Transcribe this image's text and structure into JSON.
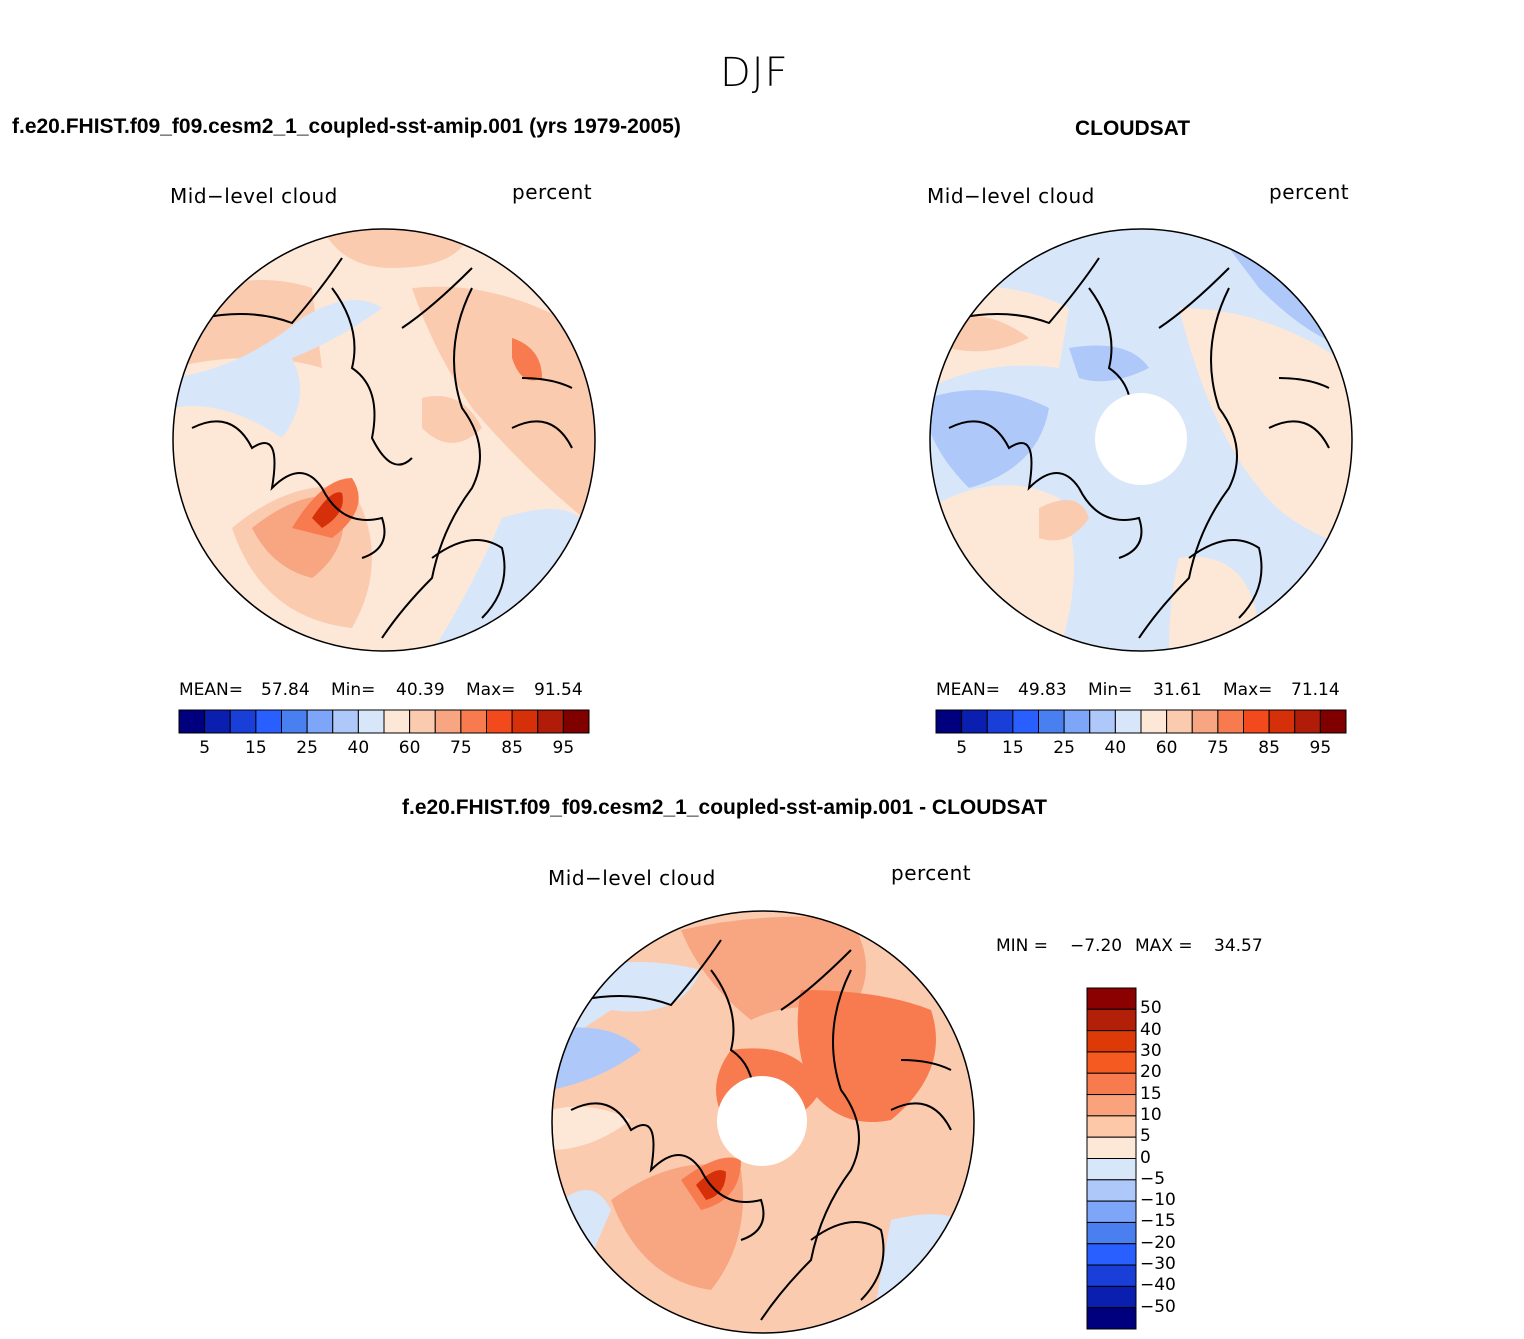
{
  "suptitle": "DJF",
  "panels": [
    {
      "title": "f.e20.FHIST.f09_f09.cesm2_1_coupled-sst-amip.001 (yrs 1979-2005)",
      "left_label": "Mid−level cloud",
      "right_label": "percent",
      "mean_label": "MEAN=",
      "mean": "57.84",
      "min_label": "Min=",
      "min": "40.39",
      "max_label": "Max=",
      "max": "91.54"
    },
    {
      "title": "CLOUDSAT",
      "left_label": "Mid−level cloud",
      "right_label": "percent",
      "mean_label": "MEAN=",
      "mean": "49.83",
      "min_label": "Min=",
      "min": "31.61",
      "max_label": "Max=",
      "max": "71.14"
    },
    {
      "title": "f.e20.FHIST.f09_f09.cesm2_1_coupled-sst-amip.001 - CLOUDSAT",
      "left_label": "Mid−level cloud",
      "right_label": "percent",
      "min_label": "MIN =",
      "min": "−7.20",
      "max_label": "MAX =",
      "max": "34.57"
    }
  ],
  "colorbar_abs": {
    "colors": [
      "#00007f",
      "#0a1fb0",
      "#1a3fd9",
      "#2a5fff",
      "#4a7ff0",
      "#7ea6f8",
      "#aec8fa",
      "#d8e6f9",
      "#fde8d8",
      "#fbcbb0",
      "#f8a682",
      "#f77b4e",
      "#f24a1c",
      "#d6300a",
      "#b01c08",
      "#800000"
    ],
    "ticks": [
      "5",
      "15",
      "25",
      "40",
      "60",
      "75",
      "85",
      "95"
    ]
  },
  "colorbar_diff": {
    "colors_top_to_bottom": [
      "#8b0000",
      "#b3200a",
      "#dd3a08",
      "#f55a20",
      "#f77b4e",
      "#f9a27c",
      "#fcc8a8",
      "#fde8d8",
      "#d8e6f9",
      "#aec8fa",
      "#7ea6f8",
      "#4a7ff0",
      "#2a5fff",
      "#1a3fd9",
      "#0a1fb0",
      "#00007f"
    ],
    "ticks_top_to_bottom": [
      "50",
      "40",
      "30",
      "20",
      "15",
      "10",
      "5",
      "0",
      "−5",
      "−10",
      "−15",
      "−20",
      "−30",
      "−40",
      "−50"
    ]
  },
  "chart_data": [
    {
      "type": "heatmap",
      "title": "f.e20.FHIST.f09_f09.cesm2_1_coupled-sst-amip.001 (yrs 1979-2005)",
      "variable": "Mid-level cloud",
      "units": "percent",
      "projection": "north polar stereographic",
      "mean": 57.84,
      "min": 40.39,
      "max": 91.54,
      "levels": [
        5,
        10,
        15,
        20,
        25,
        30,
        40,
        50,
        60,
        65,
        75,
        80,
        85,
        90,
        95
      ]
    },
    {
      "type": "heatmap",
      "title": "CLOUDSAT",
      "variable": "Mid-level cloud",
      "units": "percent",
      "projection": "north polar stereographic",
      "mean": 49.83,
      "min": 31.61,
      "max": 71.14,
      "levels": [
        5,
        10,
        15,
        20,
        25,
        30,
        40,
        50,
        60,
        65,
        75,
        80,
        85,
        90,
        95
      ]
    },
    {
      "type": "heatmap",
      "title": "f.e20.FHIST.f09_f09.cesm2_1_coupled-sst-amip.001 - CLOUDSAT",
      "variable": "Mid-level cloud",
      "units": "percent",
      "projection": "north polar stereographic",
      "min": -7.2,
      "max": 34.57,
      "levels": [
        -50,
        -40,
        -30,
        -20,
        -15,
        -10,
        -5,
        0,
        5,
        10,
        15,
        20,
        30,
        40,
        50
      ]
    }
  ]
}
